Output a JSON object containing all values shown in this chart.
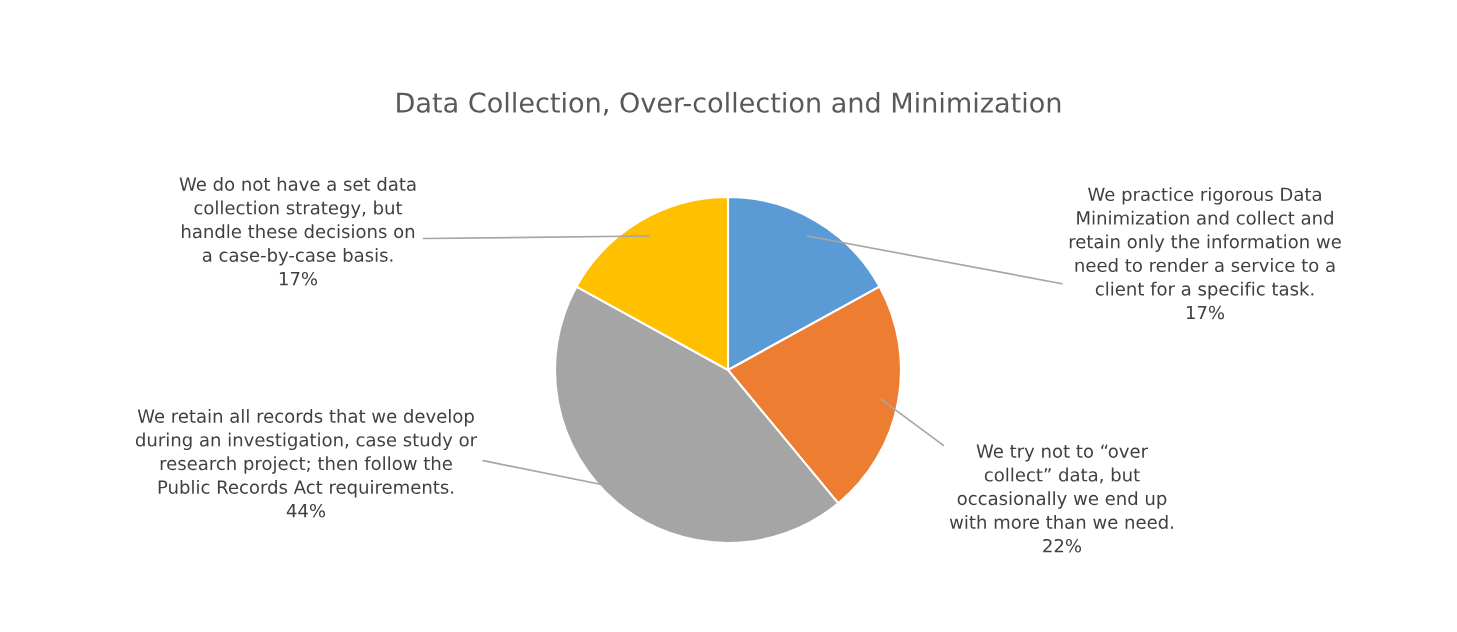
{
  "chart_data": {
    "type": "pie",
    "title": "Data Collection, Over-collection and Minimization",
    "categories": [
      "We practice rigorous Data\nMinimization and collect and\nretain only the information we\nneed to render a service to a\nclient for a specific task.",
      "We try not to “over\ncollect” data, but\noccasionally we end up\nwith more than we need.",
      "We retain all records that we develop\nduring an investigation, case study or\nresearch project; then follow the\nPublic Records Act requirements.",
      "We do not have a set data\ncollection strategy, but\nhandle these decisions on\na case-by-case basis."
    ],
    "values": [
      17,
      22,
      44,
      17
    ],
    "value_labels": [
      "17%",
      "22%",
      "44%",
      "17%"
    ],
    "colors": [
      "#5b9bd5",
      "#ed7d31",
      "#a5a5a5",
      "#ffc000"
    ]
  }
}
